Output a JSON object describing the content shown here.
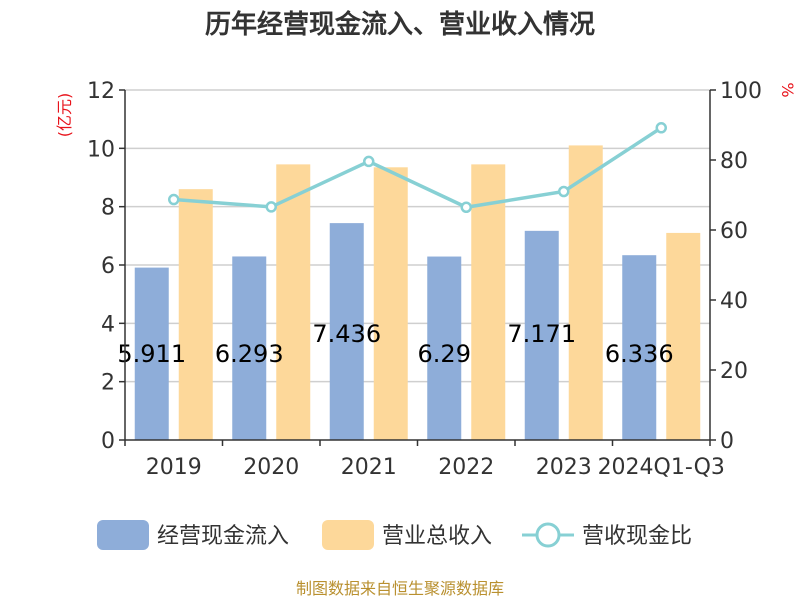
{
  "chart_data": {
    "type": "bar",
    "title": "历年经营现金流入、营业收入情况",
    "categories": [
      "2019",
      "2020",
      "2021",
      "2022",
      "2023",
      "2024Q1-Q3"
    ],
    "series": [
      {
        "name": "经营现金流入",
        "kind": "bar",
        "axis": "left",
        "color": "#8eadd9",
        "values": [
          5.911,
          6.293,
          7.436,
          6.29,
          7.171,
          6.336
        ],
        "labels": [
          "5.911",
          "6.293",
          "7.436",
          "6.29",
          "7.171",
          "6.336"
        ]
      },
      {
        "name": "营业总收入",
        "kind": "bar",
        "axis": "left",
        "color": "#fdd89a",
        "values": [
          8.6,
          9.45,
          9.35,
          9.45,
          10.1,
          7.1
        ]
      },
      {
        "name": "营收现金比",
        "kind": "line",
        "axis": "right",
        "color": "#87d0d4",
        "values": [
          68.7,
          66.6,
          79.6,
          66.5,
          71.0,
          89.2
        ]
      }
    ],
    "y_left": {
      "unit": "(亿元)",
      "ylim": [
        0,
        12
      ],
      "ticks": [
        "0",
        "2",
        "4",
        "6",
        "8",
        "10",
        "12"
      ]
    },
    "y_right": {
      "unit": "%",
      "ylim": [
        0,
        100
      ],
      "ticks": [
        "0",
        "20",
        "40",
        "60",
        "80",
        "100"
      ]
    },
    "grid": true,
    "legend_position": "bottom"
  },
  "source": "制图数据来自恒生聚源数据库"
}
